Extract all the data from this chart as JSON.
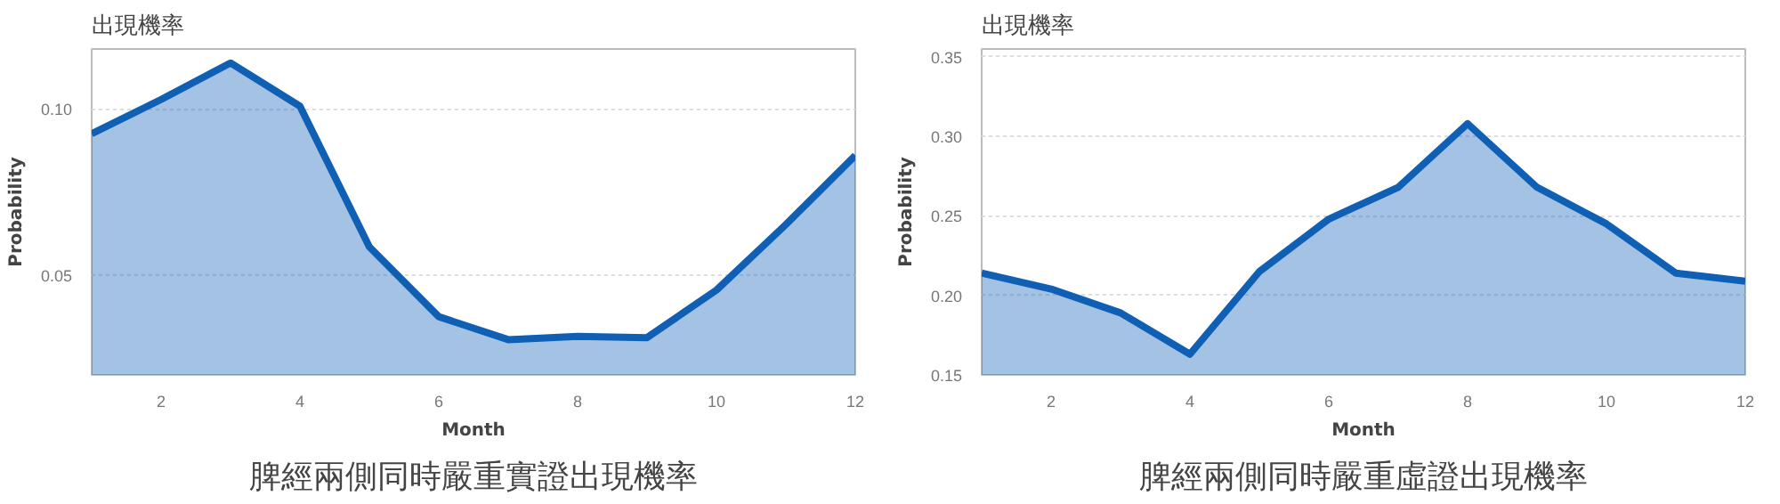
{
  "chart_data": [
    {
      "type": "area",
      "title": "出現機率",
      "xlabel": "Month",
      "ylabel": "Probability",
      "annotations": [
        "脾經兩側同時嚴重實證出現機率"
      ],
      "x": [
        1,
        2,
        3,
        4,
        5,
        6,
        7,
        8,
        9,
        10,
        11,
        12
      ],
      "values": [
        0.0925,
        0.1028,
        0.1138,
        0.1008,
        0.0585,
        0.0375,
        0.0306,
        0.0316,
        0.0312,
        0.0455,
        0.0652,
        0.086
      ],
      "color": "#0f5fb5",
      "xlim": [
        1,
        12
      ],
      "xticks": [
        2,
        4,
        6,
        8,
        10,
        12
      ],
      "ylim": [
        0.02,
        0.118
      ],
      "yticks": [
        0.05,
        {
          "value": 0.1,
          "label": "0.10"
        }
      ],
      "grid": "y"
    },
    {
      "type": "area",
      "title": "出現機率",
      "xlabel": "Month",
      "ylabel": "Probability",
      "annotations": [
        "脾經兩側同時嚴重虛證出現機率"
      ],
      "x": [
        1,
        2,
        3,
        4,
        5,
        6,
        7,
        8,
        9,
        10,
        11,
        12
      ],
      "values": [
        0.214,
        0.204,
        0.189,
        0.163,
        0.215,
        0.248,
        0.268,
        0.308,
        0.268,
        0.245,
        0.214,
        0.209
      ],
      "color": "#0f5fb5",
      "xlim": [
        1,
        12
      ],
      "xticks": [
        2,
        4,
        6,
        8,
        10,
        12
      ],
      "ylim": [
        0.15,
        0.355
      ],
      "yticks": [
        0.15,
        {
          "value": 0.2,
          "label": "0.20"
        },
        0.25,
        {
          "value": 0.3,
          "label": "0.30"
        },
        0.35
      ],
      "grid": "y"
    }
  ]
}
